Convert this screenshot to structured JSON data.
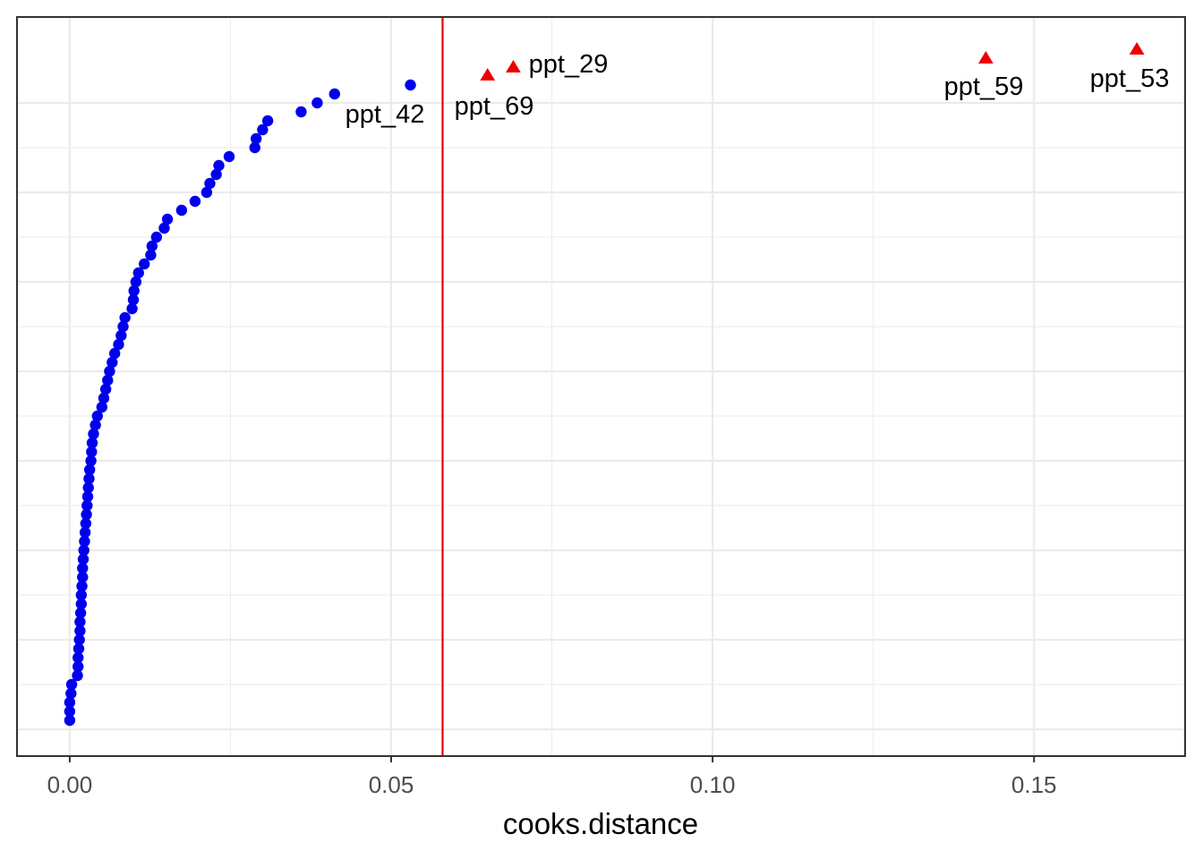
{
  "chart_data": {
    "type": "scatter",
    "title": "",
    "xlabel": "cooks.distance",
    "ylabel": "",
    "xlim": [
      -0.0082,
      0.1735
    ],
    "ylim": [
      0,
      74
    ],
    "xticks": [
      0.0,
      0.05,
      0.1,
      0.15
    ],
    "xtick_labels": [
      "0.00",
      "0.05",
      "0.10",
      "0.15"
    ],
    "grid": true,
    "threshold": {
      "x": 0.058,
      "color": "#e60000"
    },
    "colors": {
      "normal": "#0000ee",
      "outlier": "#ee0000",
      "panel_border": "#333333",
      "grid": "#ebebeb"
    },
    "normal_points": [
      0.0,
      0.0,
      0.0,
      0.0002,
      0.0003,
      0.0012,
      0.0013,
      0.0013,
      0.0014,
      0.0015,
      0.0016,
      0.0016,
      0.0017,
      0.0018,
      0.0018,
      0.0019,
      0.002,
      0.002,
      0.0021,
      0.0022,
      0.0023,
      0.0024,
      0.0025,
      0.0026,
      0.0027,
      0.0028,
      0.0029,
      0.003,
      0.0031,
      0.0033,
      0.0034,
      0.0035,
      0.0037,
      0.004,
      0.0043,
      0.005,
      0.0053,
      0.0056,
      0.0059,
      0.0062,
      0.0066,
      0.007,
      0.0076,
      0.008,
      0.0083,
      0.0086,
      0.0097,
      0.0099,
      0.01,
      0.0103,
      0.0107,
      0.0116,
      0.0126,
      0.0128,
      0.0135,
      0.0147,
      0.0152,
      0.0174,
      0.0195,
      0.0213,
      0.0218,
      0.0228,
      0.0232,
      0.0248,
      0.0288,
      0.029,
      0.03,
      0.0308,
      0.036,
      0.0385,
      0.0412,
      0.053
    ],
    "outliers": [
      {
        "label": "ppt_69",
        "x": 0.065,
        "y": 74
      },
      {
        "label": "ppt_29",
        "x": 0.069,
        "y": 75
      },
      {
        "label": "ppt_59",
        "x": 0.1425,
        "y": 76
      },
      {
        "label": "ppt_53",
        "x": 0.166,
        "y": 77
      }
    ],
    "labeled_points": [
      {
        "label": "ppt_42",
        "x": 0.053,
        "y": 72
      }
    ]
  }
}
